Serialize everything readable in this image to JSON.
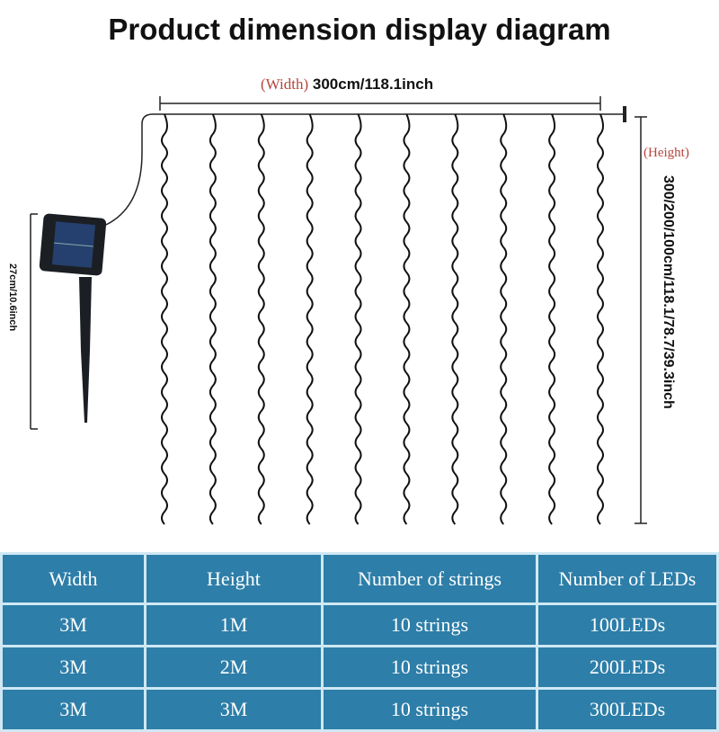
{
  "title": "Product dimension display diagram",
  "width_label": {
    "prefix": "(Width)",
    "value": "300cm/118.1inch"
  },
  "height_label": {
    "prefix": "(Height)",
    "value": "300/200/100cm/118.1/78.7/39.3inch"
  },
  "stake_label": "27cm/10.6inch",
  "strings_count": 10,
  "table": {
    "headers": [
      "Width",
      "Height",
      "Number of strings",
      "Number of LEDs"
    ],
    "rows": [
      [
        "3M",
        "1M",
        "10 strings",
        "100LEDs"
      ],
      [
        "3M",
        "2M",
        "10 strings",
        "200LEDs"
      ],
      [
        "3M",
        "3M",
        "10 strings",
        "300LEDs"
      ]
    ]
  },
  "colors": {
    "table_bg": "#2d7ea8",
    "accent_red": "#b5453c"
  }
}
